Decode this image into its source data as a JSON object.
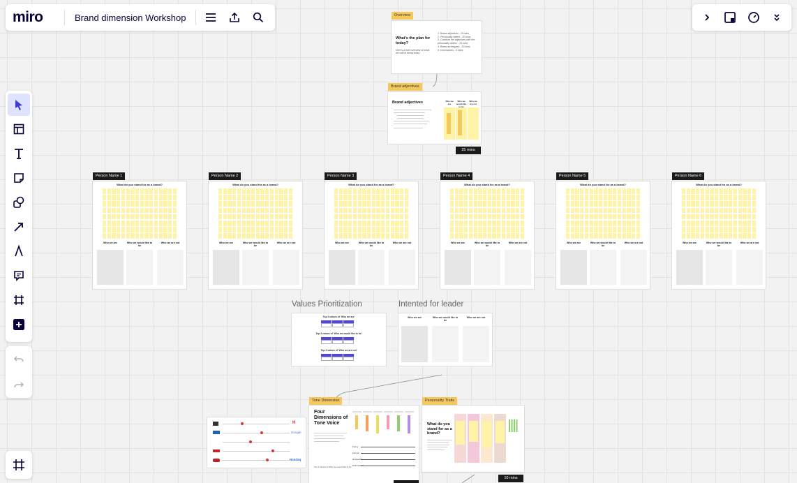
{
  "app": {
    "logo": "miro",
    "board_title": "Brand dimension Workshop"
  },
  "toolbar": {
    "menu_icon": "menu-icon",
    "share_icon": "upload-icon",
    "search_icon": "search-icon"
  },
  "top_right": {
    "icons": [
      "chevron-right-icon",
      "sticky-add-icon",
      "timer-icon",
      "chevrons-down-icon"
    ]
  },
  "left_tools": [
    "select-icon",
    "templates-icon",
    "text-icon",
    "sticky-note-icon",
    "shapes-icon",
    "arrow-icon",
    "pen-icon",
    "comment-icon",
    "frame-icon",
    "plus-icon"
  ],
  "history": [
    "undo-icon",
    "redo-icon"
  ],
  "frames_button": "frames-icon",
  "overview": {
    "tag": "Overview",
    "heading": "What's the plan for today?",
    "subtext": "Here's a brief overview of what we will be doing today",
    "items": [
      "1. Brand adjectives - 25 mins",
      "2. Personality sliders - 20 mins",
      "3. Combine the adjectives with the personality sliders - 15 mins",
      "4. Brand archetypes - 20 mins",
      "5. Conclusions - 5 mins"
    ]
  },
  "brand_adjectives": {
    "tag": "Brand adjectives",
    "heading": "Brand adjectives",
    "columns": [
      "Who we are",
      "Who we would like to be",
      "Who we are not"
    ],
    "timer": "25 mins"
  },
  "persons": [
    {
      "tag": "Person Name 1"
    },
    {
      "tag": "Person Name 2"
    },
    {
      "tag": "Person Name 3"
    },
    {
      "tag": "Person Name 4"
    },
    {
      "tag": "Person Name 5"
    },
    {
      "tag": "Person Name 6"
    }
  ],
  "person_card": {
    "question": "What do you stand for as a brand?",
    "columns": [
      "Who we are",
      "Who we would like to be",
      "Who we are not"
    ]
  },
  "values_prioritization": {
    "caption": "Values Prioritization",
    "rows": [
      "Top 3 values of 'Who we are'",
      "Top 3 values of 'Who we would like to be'",
      "Top 3 values of 'Who we are not'"
    ]
  },
  "intended_leader": {
    "caption": "Intented for leader",
    "columns": [
      "Who we are",
      "Who we would like to be",
      "Who we are not"
    ]
  },
  "tone": {
    "tag": "Tone Dimension",
    "heading": "Four Dimensions of Tone Voice",
    "dims": [
      "Funny",
      "Formal",
      "Respectful",
      "Enthusiastic"
    ],
    "footer": "Top 6 values of Who we would like to be"
  },
  "personality": {
    "tag": "Personality Traits",
    "heading": "What do you stand for as a brand?",
    "timer": "10 mins"
  },
  "colors": {
    "accent": "#5046e4",
    "sticky": "#fff3a8",
    "tag_yellow": "#f5c85c"
  }
}
